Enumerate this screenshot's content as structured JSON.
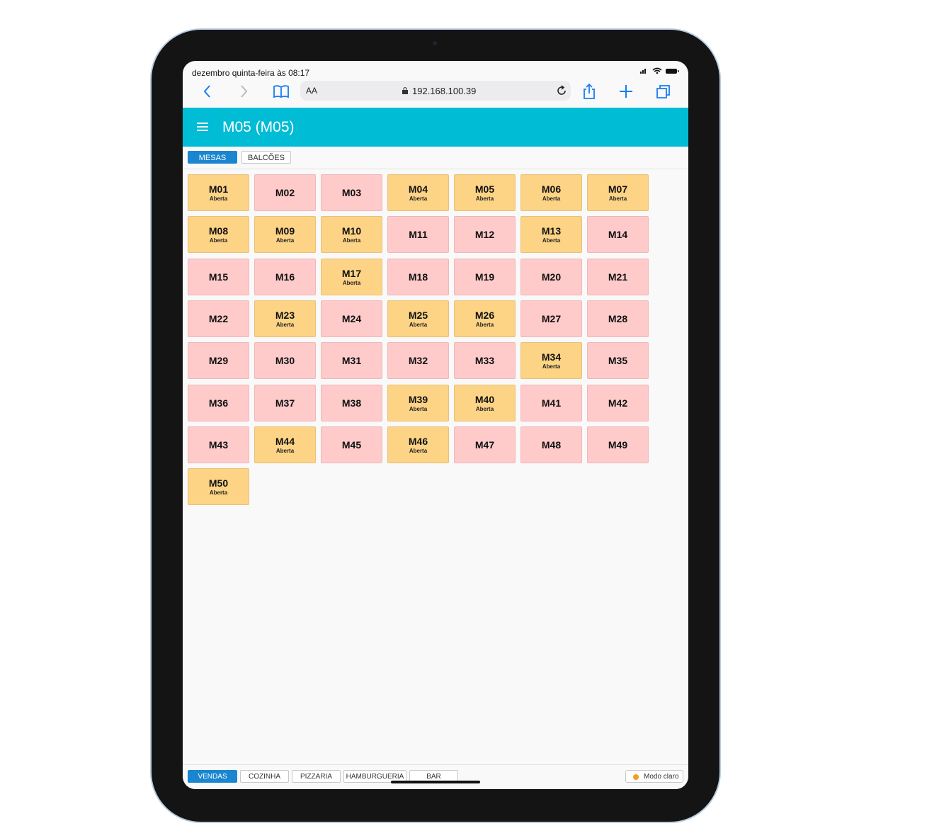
{
  "status_bar": {
    "time": "dezembro quinta-feira às 08:17"
  },
  "browser": {
    "aa": "AA",
    "url": "192.168.100.39"
  },
  "header": {
    "title": "M05 (M05)"
  },
  "tabs": [
    "MESAS",
    "BALCÕES"
  ],
  "tables": [
    {
      "label": "M01",
      "status": "Aberta"
    },
    {
      "label": "M02"
    },
    {
      "label": "M03"
    },
    {
      "label": "M04",
      "status": "Aberta"
    },
    {
      "label": "M05",
      "status": "Aberta"
    },
    {
      "label": "M06",
      "status": "Aberta"
    },
    {
      "label": "M07",
      "status": "Aberta"
    },
    {
      "label": "M08",
      "status": "Aberta"
    },
    {
      "label": "M09",
      "status": "Aberta"
    },
    {
      "label": "M10",
      "status": "Aberta"
    },
    {
      "label": "M11"
    },
    {
      "label": "M12"
    },
    {
      "label": "M13",
      "status": "Aberta"
    },
    {
      "label": "M14"
    },
    {
      "label": "M15"
    },
    {
      "label": "M16"
    },
    {
      "label": "M17",
      "status": "Aberta"
    },
    {
      "label": "M18"
    },
    {
      "label": "M19"
    },
    {
      "label": "M20"
    },
    {
      "label": "M21"
    },
    {
      "label": "M22"
    },
    {
      "label": "M23",
      "status": "Aberta"
    },
    {
      "label": "M24"
    },
    {
      "label": "M25",
      "status": "Aberta"
    },
    {
      "label": "M26",
      "status": "Aberta"
    },
    {
      "label": "M27"
    },
    {
      "label": "M28"
    },
    {
      "label": "M29"
    },
    {
      "label": "M30"
    },
    {
      "label": "M31"
    },
    {
      "label": "M32"
    },
    {
      "label": "M33"
    },
    {
      "label": "M34",
      "status": "Aberta"
    },
    {
      "label": "M35"
    },
    {
      "label": "M36"
    },
    {
      "label": "M37"
    },
    {
      "label": "M38"
    },
    {
      "label": "M39",
      "status": "Aberta"
    },
    {
      "label": "M40",
      "status": "Aberta"
    },
    {
      "label": "M41"
    },
    {
      "label": "M42"
    },
    {
      "label": "M43"
    },
    {
      "label": "M44",
      "status": "Aberta"
    },
    {
      "label": "M45"
    },
    {
      "label": "M46",
      "status": "Aberta"
    },
    {
      "label": "M47"
    },
    {
      "label": "M48"
    },
    {
      "label": "M49"
    },
    {
      "label": "M50",
      "status": "Aberta"
    }
  ],
  "footer": {
    "tabs": [
      "VENDAS",
      "COZINHA",
      "PIZZARIA",
      "HAMBURGUERIA",
      "BAR"
    ],
    "theme_button": "Modo claro"
  }
}
